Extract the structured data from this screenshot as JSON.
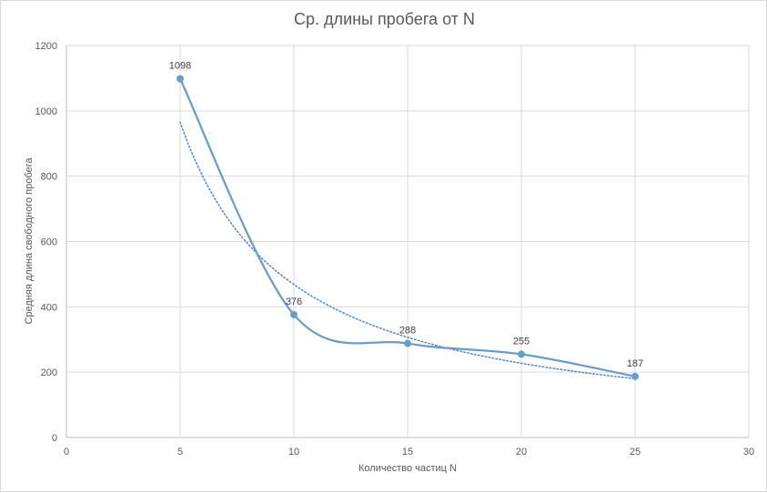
{
  "chart_data": {
    "type": "scatter",
    "title": "Ср. длины пробега от N",
    "xlabel": "Количество частиц N",
    "ylabel": "Средняя длина свободного пробега",
    "xlim": [
      0,
      30
    ],
    "ylim": [
      0,
      1200
    ],
    "x_ticks": [
      "0",
      "5",
      "10",
      "15",
      "20",
      "25",
      "30"
    ],
    "y_ticks": [
      "0",
      "200",
      "400",
      "600",
      "800",
      "1000",
      "1200"
    ],
    "grid": true,
    "series": [
      {
        "style": "smoothed-line-with-markers",
        "x": [
          5,
          10,
          15,
          20,
          25
        ],
        "y": [
          1098,
          376,
          288,
          255,
          187
        ],
        "data_labels": [
          "1098",
          "376",
          "288",
          "255",
          "187"
        ],
        "color": "#6a9ccb"
      }
    ],
    "trendline": {
      "type": "power",
      "style": "dotted",
      "x_range": [
        5,
        25
      ],
      "color": "#4f86c6"
    }
  }
}
